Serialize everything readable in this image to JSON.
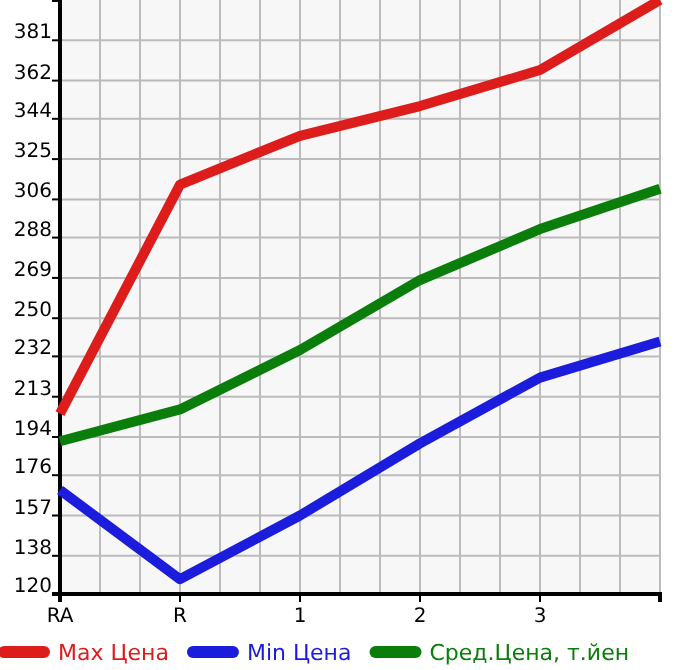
{
  "chart_data": {
    "type": "line",
    "categories": [
      "RA",
      "R",
      "1",
      "2",
      "3",
      null
    ],
    "series": [
      {
        "name": "Max Цена",
        "color": "#dd1c1c",
        "values": [
          205,
          313,
          336,
          350,
          367,
          400
        ]
      },
      {
        "name": "Min Цена",
        "color": "#1c1cdd",
        "values": [
          169,
          127,
          157,
          191,
          222,
          239
        ]
      },
      {
        "name": "Сред.Цена, т.йен",
        "color": "#0a7d0a",
        "values": [
          192,
          207,
          235,
          268,
          292,
          311
        ]
      }
    ],
    "ylim": [
      120,
      400
    ],
    "yticks": [
      120,
      138,
      157,
      176,
      194,
      213,
      232,
      250,
      269,
      288,
      306,
      325,
      344,
      362,
      381
    ],
    "grid": true,
    "legend": "bottom",
    "marker": "none",
    "line_style": "solid"
  }
}
